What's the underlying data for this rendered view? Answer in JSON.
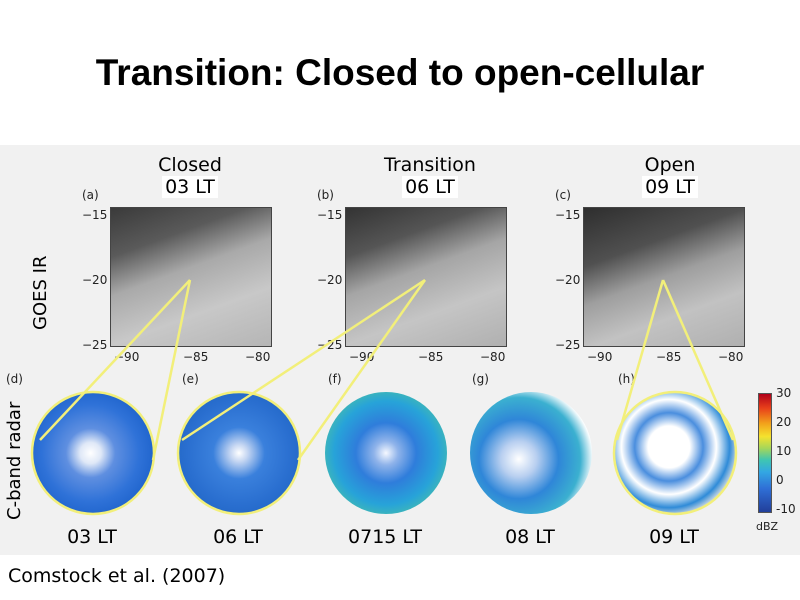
{
  "title": "Transition: Closed to open-cellular",
  "columns": [
    {
      "label": "Closed",
      "time": "03 LT"
    },
    {
      "label": "Transition",
      "time": "06 LT"
    },
    {
      "label": "Open",
      "time": "09 LT"
    }
  ],
  "rows": {
    "satellite": "GOES IR",
    "radar": "C-band radar"
  },
  "sat_panels": [
    {
      "letter": "(a)",
      "yticks": [
        "−15",
        "−20",
        "−25"
      ],
      "xticks": [
        "−90",
        "−85",
        "−80"
      ]
    },
    {
      "letter": "(b)",
      "yticks": [
        "−15",
        "−20",
        "−25"
      ],
      "xticks": [
        "−90",
        "−85",
        "−80"
      ]
    },
    {
      "letter": "(c)",
      "yticks": [
        "−15",
        "−20",
        "−25"
      ],
      "xticks": [
        "−90",
        "−85",
        "−80"
      ]
    }
  ],
  "radar_panels": [
    {
      "letter": "(d)",
      "time": "03 LT"
    },
    {
      "letter": "(e)",
      "time": "06 LT"
    },
    {
      "letter": "(f)",
      "time": "0715 LT"
    },
    {
      "letter": "(g)",
      "time": "08 LT"
    },
    {
      "letter": "(h)",
      "time": "09 LT"
    }
  ],
  "colorbar": {
    "ticks": [
      "30",
      "20",
      "10",
      "0",
      "-10"
    ],
    "unit": "dBZ"
  },
  "credit": "Comstock et al. (2007)",
  "colors": {
    "highlight": "#f2ef7a",
    "radar_bg": "#1f6fd6"
  }
}
